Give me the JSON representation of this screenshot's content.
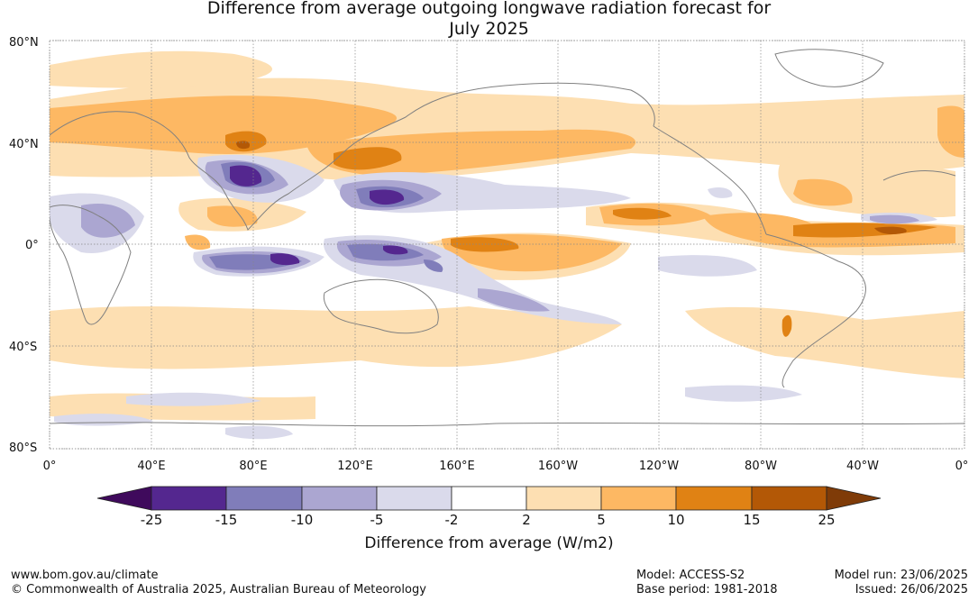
{
  "title": {
    "line1": "Difference from average outgoing longwave radiation forecast for",
    "line2": "July 2025"
  },
  "map": {
    "lat_labels": [
      "80°N",
      "40°N",
      "0°",
      "40°S",
      "80°S"
    ],
    "lon_labels": [
      "0°",
      "40°E",
      "80°E",
      "120°E",
      "160°E",
      "160°W",
      "120°W",
      "80°W",
      "40°W",
      "0°"
    ],
    "land_outline_color": "#808080",
    "grid_color": "#888888"
  },
  "colorbar": {
    "ticks": [
      "-25",
      "-15",
      "-10",
      "-5",
      "-2",
      "2",
      "5",
      "10",
      "15",
      "25"
    ],
    "colors": [
      "#3f0a5c",
      "#54278f",
      "#807dba",
      "#aba6d1",
      "#dadaeb",
      "#ffffff",
      "#fddfb2",
      "#fdb863",
      "#e08214",
      "#b35806",
      "#7f3b08"
    ],
    "label": "Difference from average (W/m2)"
  },
  "footer": {
    "website": "www.bom.gov.au/climate",
    "copyright": "© Commonwealth of Australia 2025, Australian Bureau of Meteorology",
    "model": "Model: ACCESS-S2",
    "base_period": "Base period: 1981-2018",
    "model_run": "Model run: 23/06/2025",
    "issued": "Issued: 26/06/2025"
  }
}
